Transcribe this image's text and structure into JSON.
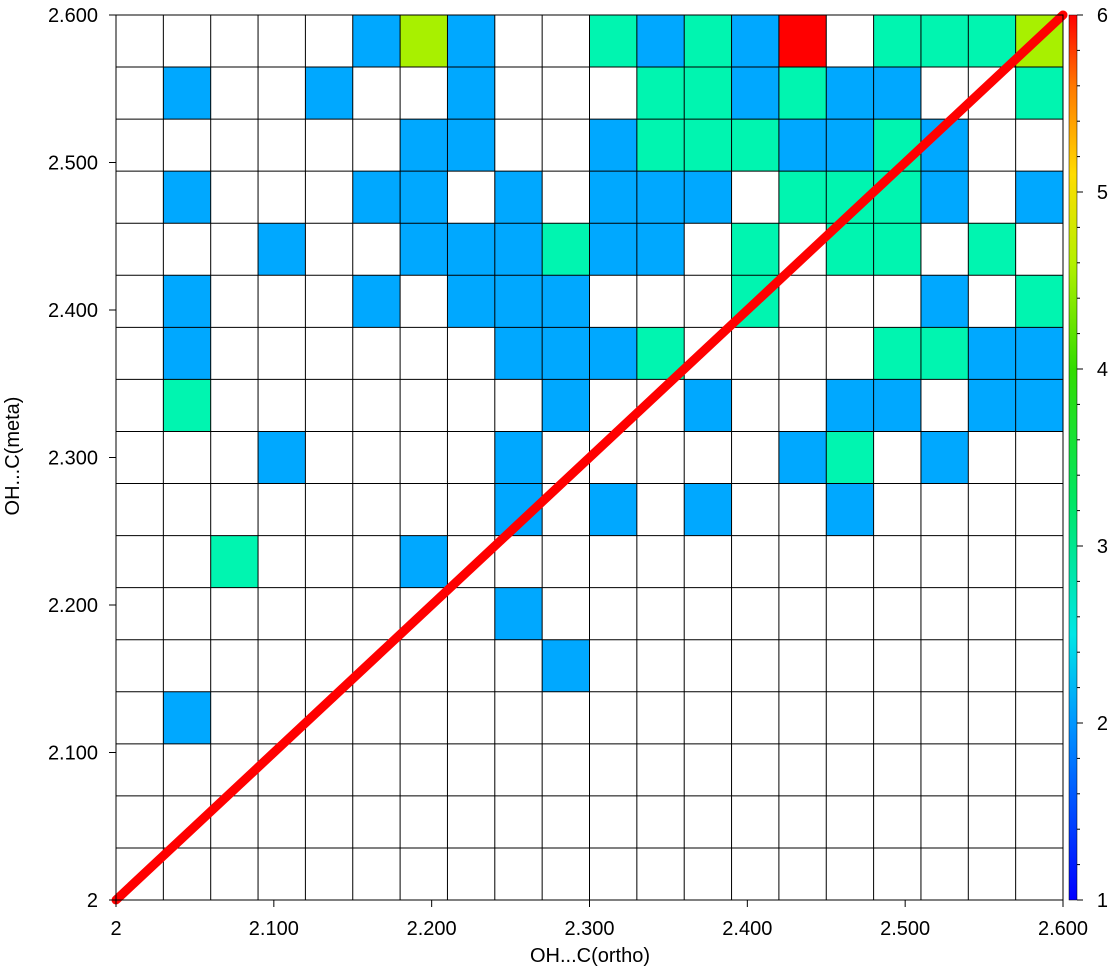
{
  "chart_data": {
    "type": "heatmap",
    "title": "",
    "xlabel": "OH...C(ortho)",
    "ylabel": "OH...C(meta)",
    "xlim": [
      2.0,
      2.6
    ],
    "ylim": [
      2.0,
      2.6
    ],
    "n_cols": 20,
    "n_rows": 17,
    "x_ticks": [
      {
        "value": 2.0,
        "label": "2"
      },
      {
        "value": 2.1,
        "label": "2.100"
      },
      {
        "value": 2.2,
        "label": "2.200"
      },
      {
        "value": 2.3,
        "label": "2.300"
      },
      {
        "value": 2.4,
        "label": "2.400"
      },
      {
        "value": 2.5,
        "label": "2.500"
      },
      {
        "value": 2.6,
        "label": "2.600"
      }
    ],
    "y_ticks": [
      {
        "value": 2.0,
        "label": "2"
      },
      {
        "value": 2.1,
        "label": "2.100"
      },
      {
        "value": 2.2,
        "label": "2.200"
      },
      {
        "value": 2.3,
        "label": "2.300"
      },
      {
        "value": 2.4,
        "label": "2.400"
      },
      {
        "value": 2.5,
        "label": "2.500"
      },
      {
        "value": 2.6,
        "label": "2.600"
      }
    ],
    "colorbar": {
      "min": 1,
      "max": 6,
      "ticks": [
        {
          "value": 1,
          "label": "1"
        },
        {
          "value": 2,
          "label": "2"
        },
        {
          "value": 3,
          "label": "3"
        },
        {
          "value": 4,
          "label": "4"
        },
        {
          "value": 5,
          "label": "5"
        },
        {
          "value": 6,
          "label": "6"
        }
      ]
    },
    "counts_top_to_bottom": [
      [
        0,
        0,
        0,
        0,
        0,
        2,
        4,
        2,
        0,
        0,
        3,
        2,
        3,
        2,
        6,
        0,
        3,
        3,
        3,
        4
      ],
      [
        0,
        2,
        0,
        0,
        2,
        0,
        0,
        2,
        0,
        0,
        0,
        3,
        3,
        2,
        3,
        2,
        2,
        0,
        0,
        3
      ],
      [
        0,
        0,
        0,
        0,
        0,
        0,
        2,
        2,
        0,
        0,
        2,
        3,
        3,
        3,
        2,
        2,
        3,
        2,
        0,
        0
      ],
      [
        0,
        2,
        0,
        0,
        0,
        2,
        2,
        0,
        2,
        0,
        2,
        2,
        2,
        0,
        3,
        3,
        3,
        2,
        0,
        2
      ],
      [
        0,
        0,
        0,
        2,
        0,
        0,
        2,
        2,
        2,
        3,
        2,
        2,
        0,
        3,
        0,
        3,
        3,
        0,
        3,
        0
      ],
      [
        0,
        2,
        0,
        0,
        0,
        2,
        0,
        2,
        2,
        2,
        0,
        0,
        0,
        3,
        0,
        0,
        0,
        2,
        0,
        3
      ],
      [
        0,
        2,
        0,
        0,
        0,
        0,
        0,
        0,
        2,
        2,
        2,
        3,
        0,
        0,
        0,
        0,
        3,
        3,
        2,
        2
      ],
      [
        0,
        3,
        0,
        0,
        0,
        0,
        0,
        0,
        0,
        2,
        0,
        0,
        2,
        0,
        0,
        2,
        2,
        0,
        2,
        2
      ],
      [
        0,
        0,
        0,
        2,
        0,
        0,
        0,
        0,
        2,
        0,
        0,
        0,
        0,
        0,
        2,
        3,
        0,
        2,
        0,
        0
      ],
      [
        0,
        0,
        0,
        0,
        0,
        0,
        0,
        0,
        2,
        0,
        2,
        0,
        2,
        0,
        0,
        2,
        0,
        0,
        0,
        0
      ],
      [
        0,
        0,
        3,
        0,
        0,
        0,
        2,
        0,
        0,
        0,
        0,
        0,
        0,
        0,
        0,
        0,
        0,
        0,
        0,
        0
      ],
      [
        0,
        0,
        0,
        0,
        0,
        0,
        0,
        0,
        2,
        0,
        0,
        0,
        0,
        0,
        0,
        0,
        0,
        0,
        0,
        0
      ],
      [
        0,
        0,
        0,
        0,
        0,
        0,
        0,
        0,
        0,
        2,
        0,
        0,
        0,
        0,
        0,
        0,
        0,
        0,
        0,
        0
      ],
      [
        0,
        2,
        0,
        0,
        0,
        0,
        0,
        0,
        0,
        0,
        0,
        0,
        0,
        0,
        0,
        0,
        0,
        0,
        0,
        0
      ],
      [
        0,
        0,
        0,
        0,
        0,
        0,
        0,
        0,
        0,
        0,
        0,
        0,
        0,
        0,
        0,
        0,
        0,
        0,
        0,
        0
      ],
      [
        0,
        0,
        0,
        0,
        0,
        0,
        0,
        0,
        0,
        0,
        0,
        0,
        0,
        0,
        0,
        0,
        0,
        0,
        0,
        0
      ],
      [
        0,
        0,
        0,
        0,
        0,
        0,
        0,
        0,
        0,
        0,
        0,
        0,
        0,
        0,
        0,
        0,
        0,
        0,
        0,
        0
      ]
    ],
    "diagonal_line": {
      "from": [
        2.0,
        2.0
      ],
      "to": [
        2.6,
        2.6
      ],
      "color": "#ff0000"
    },
    "colors": {
      "cell_2": "#00a8ff",
      "cell_3": "#00f5b0",
      "cell_4": "#22e010",
      "cell_6": "#ff0000",
      "cell_yellowgreen": "#a8f000",
      "grid": "#000000"
    }
  }
}
